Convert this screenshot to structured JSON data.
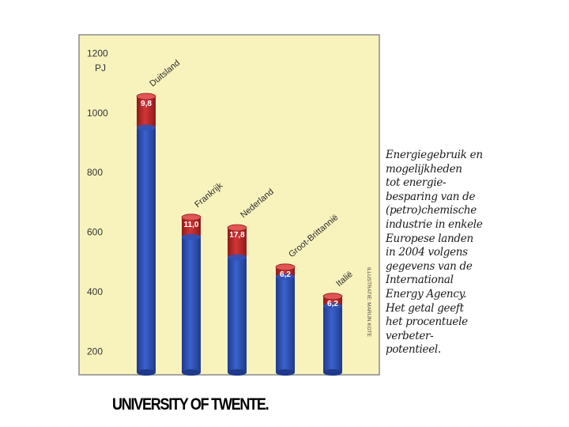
{
  "chart_data": {
    "type": "bar",
    "stacked": true,
    "categories": [
      "Duitsland",
      "Frankrijk",
      "Nederland",
      "Groot-Brittannië",
      "Italië"
    ],
    "values": [
      1055,
      650,
      615,
      483,
      385
    ],
    "savings_percent_labels": [
      "9,8",
      "11,0",
      "17,8",
      "6,2",
      "6,2"
    ],
    "unit_label": "PJ",
    "yticks": [
      200,
      400,
      600,
      800,
      1000,
      1200
    ],
    "ylim": [
      130,
      1230
    ],
    "grid": false,
    "colors": {
      "base": "#3052b8",
      "base_dark": "#1f3a8c",
      "savings": "#c42a2a",
      "savings_dark": "#8f1a1a",
      "panel": "#f8f3bd",
      "frame": "#8a8a8a"
    }
  },
  "caption": "Energiegebruik en\nmogelijkheden\n tot energie-\nbesparing van de\n(petro)chemische\nindustrie in enkele\nEuropese landen\nin 2004 volgens\ngegevens van de\nInternational\nEnergy Agency.\nHet getal geeft\nhet procentuele\nverbeter-\npotentieel.",
  "credit": "ILLUSTRATIE: MARIJN KOTE",
  "footer": "UNIVERSITY OF TWENTE."
}
